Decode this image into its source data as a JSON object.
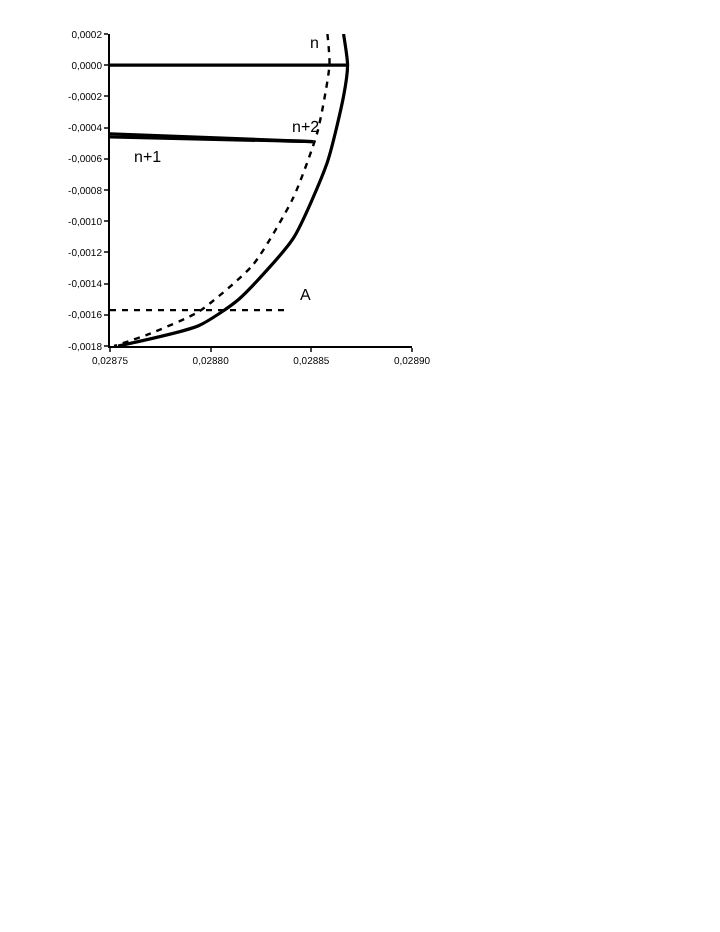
{
  "chart_data": {
    "type": "line",
    "xlim": [
      0.02875,
      0.0289
    ],
    "ylim": [
      -0.0018,
      0.0002
    ],
    "xticks": [
      {
        "value": 0.02875,
        "label": "0,02875"
      },
      {
        "value": 0.0288,
        "label": "0,02880"
      },
      {
        "value": 0.02885,
        "label": "0,02885"
      },
      {
        "value": 0.0289,
        "label": "0,02890"
      }
    ],
    "yticks": [
      {
        "value": 0.0002,
        "label": "0,0002"
      },
      {
        "value": 0,
        "label": "0,0000"
      },
      {
        "value": -0.0002,
        "label": "-0,0002"
      },
      {
        "value": -0.0004,
        "label": "-0,0004"
      },
      {
        "value": -0.0006,
        "label": "-0,0006"
      },
      {
        "value": -0.0008,
        "label": "-0,0008"
      },
      {
        "value": -0.001,
        "label": "-0,0010"
      },
      {
        "value": -0.0012,
        "label": "-0,0012"
      },
      {
        "value": -0.0014,
        "label": "-0,0014"
      },
      {
        "value": -0.0016,
        "label": "-0,0016"
      },
      {
        "value": -0.0018,
        "label": "-0,0018"
      }
    ],
    "marker": "none",
    "series": [
      {
        "color": "#000000",
        "line_style": "solid",
        "x": [
          0.028866,
          0.028868,
          0.028866,
          0.028858,
          0.028841,
          0.028814,
          0.028794,
          0.028754
        ],
        "values": [
          0.0002,
          0.0,
          -0.0002,
          -0.00062,
          -0.00111,
          -0.0015,
          -0.00167,
          -0.0018
        ]
      },
      {
        "color": "#000000",
        "line_style": "dotted",
        "x": [
          0.028858,
          0.028859,
          0.028853,
          0.028841,
          0.028821,
          0.028794,
          0.028768,
          0.028752
        ],
        "values": [
          0.0002,
          0.0,
          -0.00043,
          -0.00085,
          -0.00128,
          -0.00158,
          -0.00173,
          -0.0018
        ]
      },
      {
        "color": "#000000",
        "line_style": "solid",
        "x": [
          0.02875,
          0.028868
        ],
        "values": [
          0.0,
          0.0
        ]
      },
      {
        "color": "#000000",
        "line_style": "solid",
        "x": [
          0.02875,
          0.028851
        ],
        "values": [
          -0.00046,
          -0.00049
        ]
      },
      {
        "color": "#000000",
        "line_style": "solid",
        "x": [
          0.02875,
          0.028851
        ],
        "values": [
          -0.00044,
          -0.00049
        ]
      },
      {
        "color": "#000000",
        "line_style": "dotted",
        "x": [
          0.02875,
          0.028838
        ],
        "values": [
          -0.00157,
          -0.00157
        ]
      }
    ],
    "annotations": [
      {
        "text": "n",
        "x": 0.028847,
        "y": 5e-05
      },
      {
        "text": "n+2",
        "x": 0.028838,
        "y": -0.00049
      },
      {
        "text": "n+1",
        "x": 0.02876,
        "y": -0.00046
      },
      {
        "text": "A",
        "x": 0.028842,
        "y": -0.00157
      }
    ]
  }
}
